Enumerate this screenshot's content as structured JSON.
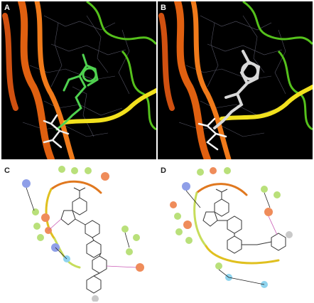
{
  "figure": {
    "panels": [
      {
        "label": "A",
        "kind": "3d-binding-pose",
        "ligand_color": "#4fd14f"
      },
      {
        "label": "B",
        "kind": "3d-binding-pose",
        "ligand_color": "#d8d8d8"
      },
      {
        "label": "C",
        "kind": "2d-interaction-map"
      },
      {
        "label": "D",
        "kind": "2d-interaction-map"
      }
    ],
    "colors": {
      "ribbon_orange": "#f07a1a",
      "ribbon_green": "#55c11c",
      "ribbon_yellow": "#f2e11e",
      "ribbon_red": "#e0261d",
      "residue_green": "#b9e07a",
      "residue_red": "#ef8c5a",
      "residue_blue": "#8f9fe8",
      "residue_cyan": "#8fd4ee",
      "residue_gray": "#c9c9c9"
    }
  }
}
